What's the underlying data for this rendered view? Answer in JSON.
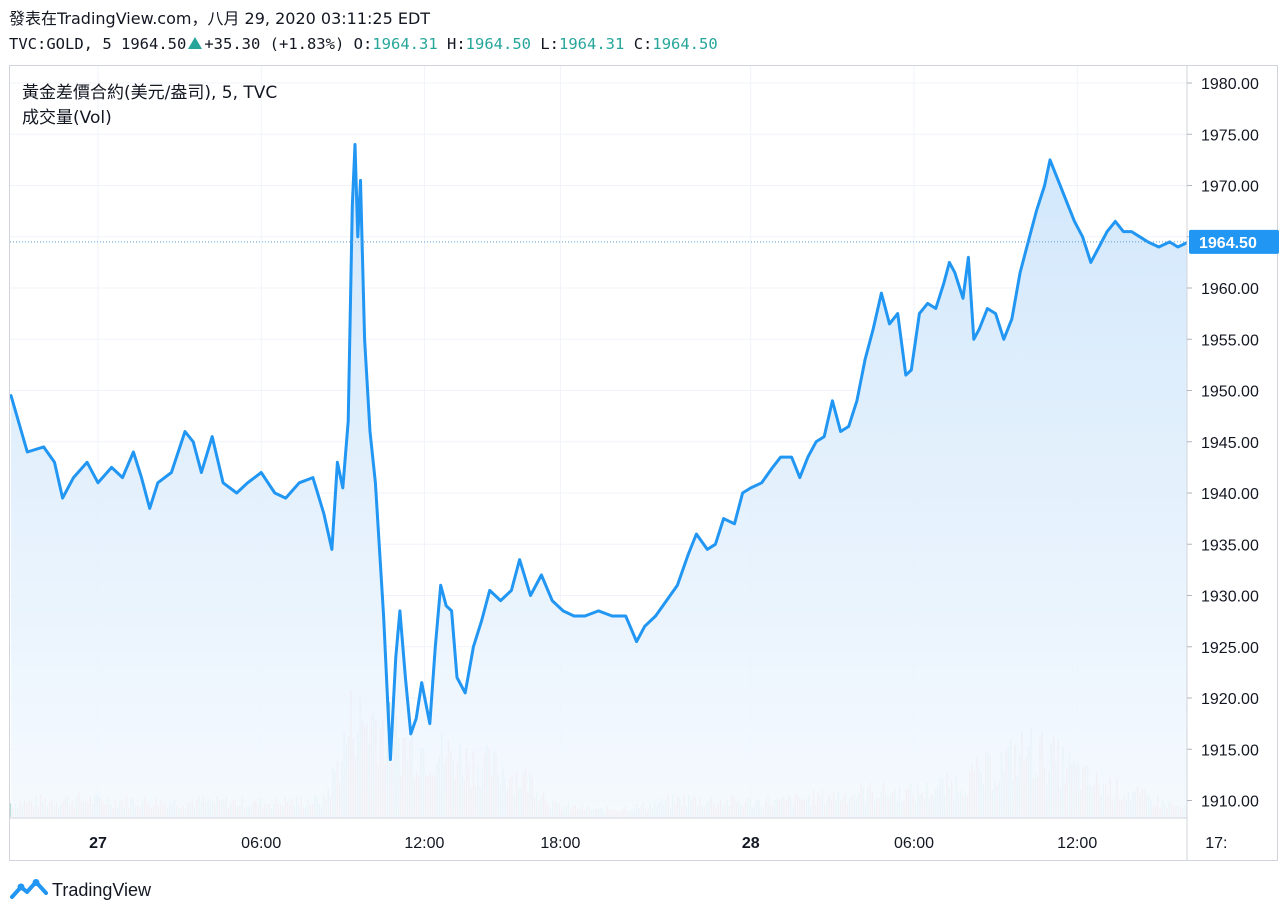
{
  "header": {
    "site_line": "發表在TradingView.com，八月 29, 2020 03:11:25 EDT",
    "symbol": "TVC:GOLD, 5",
    "last": "1964.50",
    "change": "+35.30 (+1.83%)",
    "o_label": "O:",
    "o_value": "1964.31",
    "h_label": "H:",
    "h_value": "1964.50",
    "l_label": "L:",
    "l_value": "1964.31",
    "c_label": "C:",
    "c_value": "1964.50"
  },
  "legend": {
    "series_title": "黃金差價合約(美元/盎司), 5, TVC",
    "volume_title": "成交量(Vol)"
  },
  "price_label": "1964.50",
  "brand": "TradingView",
  "colors": {
    "line": "#2196f3",
    "area_top": "#cfe6fb",
    "area_bottom": "#f4f9fe",
    "up": "#26a69a",
    "volume_up": "#9ed3cb",
    "volume_down": "#f2a6a6",
    "grid": "#f0f3fa",
    "price_dotted": "#5aa0d8"
  },
  "chart_data": {
    "type": "area",
    "ylim": [
      1908,
      1982
    ],
    "y_ticks": [
      1980,
      1975,
      1970,
      1965,
      1960,
      1955,
      1950,
      1945,
      1940,
      1935,
      1930,
      1925,
      1920,
      1915,
      1910
    ],
    "y_tick_labels": [
      "1980.00",
      "1975.00",
      "1970.00",
      "1965.00",
      "1960.00",
      "1955.00",
      "1950.00",
      "1945.00",
      "1940.00",
      "1935.00",
      "1930.00",
      "1925.00",
      "1920.00",
      "1915.00",
      "1910.00"
    ],
    "x_range_hours": [
      -3.2,
      40.1
    ],
    "x_ticks": [
      {
        "t": 0,
        "label": "27",
        "bold": true
      },
      {
        "t": 6,
        "label": "06:00",
        "bold": false
      },
      {
        "t": 12,
        "label": "12:00",
        "bold": false
      },
      {
        "t": 17,
        "label": "18:00",
        "bold": false
      },
      {
        "t": 24,
        "label": "28",
        "bold": true
      },
      {
        "t": 30,
        "label": "06:00",
        "bold": false
      },
      {
        "t": 36,
        "label": "12:00",
        "bold": false
      },
      {
        "t": 41,
        "label": "17:",
        "bold": false
      }
    ],
    "last_value": 1964.5,
    "series": [
      {
        "points": [
          [
            -3.2,
            1949.5
          ],
          [
            -2.6,
            1944.0
          ],
          [
            -2.0,
            1944.5
          ],
          [
            -1.6,
            1943.0
          ],
          [
            -1.3,
            1939.5
          ],
          [
            -0.9,
            1941.5
          ],
          [
            -0.4,
            1943.0
          ],
          [
            0.0,
            1941.0
          ],
          [
            0.5,
            1942.5
          ],
          [
            0.9,
            1941.5
          ],
          [
            1.3,
            1944.0
          ],
          [
            1.6,
            1941.5
          ],
          [
            1.9,
            1938.5
          ],
          [
            2.2,
            1941.0
          ],
          [
            2.7,
            1942.0
          ],
          [
            3.2,
            1946.0
          ],
          [
            3.5,
            1945.0
          ],
          [
            3.8,
            1942.0
          ],
          [
            4.2,
            1945.5
          ],
          [
            4.6,
            1941.0
          ],
          [
            5.1,
            1940.0
          ],
          [
            5.5,
            1941.0
          ],
          [
            6.0,
            1942.0
          ],
          [
            6.5,
            1940.0
          ],
          [
            6.9,
            1939.5
          ],
          [
            7.4,
            1941.0
          ],
          [
            7.9,
            1941.5
          ],
          [
            8.3,
            1938.0
          ],
          [
            8.6,
            1934.5
          ],
          [
            8.8,
            1943.0
          ],
          [
            9.0,
            1940.5
          ],
          [
            9.2,
            1947.0
          ],
          [
            9.35,
            1968.0
          ],
          [
            9.45,
            1974.0
          ],
          [
            9.55,
            1965.0
          ],
          [
            9.65,
            1970.5
          ],
          [
            9.8,
            1955.0
          ],
          [
            10.0,
            1946.0
          ],
          [
            10.2,
            1941.0
          ],
          [
            10.5,
            1928.0
          ],
          [
            10.75,
            1914.0
          ],
          [
            10.95,
            1924.0
          ],
          [
            11.1,
            1928.5
          ],
          [
            11.3,
            1922.0
          ],
          [
            11.5,
            1916.5
          ],
          [
            11.7,
            1918.0
          ],
          [
            11.9,
            1921.5
          ],
          [
            12.2,
            1917.5
          ],
          [
            12.4,
            1925.0
          ],
          [
            12.6,
            1931.0
          ],
          [
            12.8,
            1929.0
          ],
          [
            13.0,
            1928.5
          ],
          [
            13.2,
            1922.0
          ],
          [
            13.5,
            1920.5
          ],
          [
            13.8,
            1925.0
          ],
          [
            14.1,
            1927.5
          ],
          [
            14.4,
            1930.5
          ],
          [
            14.8,
            1929.5
          ],
          [
            15.2,
            1930.5
          ],
          [
            15.5,
            1933.5
          ],
          [
            15.9,
            1930.0
          ],
          [
            16.3,
            1932.0
          ],
          [
            16.7,
            1929.5
          ],
          [
            17.1,
            1928.5
          ],
          [
            17.5,
            1928.0
          ],
          [
            17.9,
            1928.0
          ],
          [
            18.4,
            1928.5
          ],
          [
            18.9,
            1928.0
          ],
          [
            19.4,
            1928.0
          ],
          [
            19.8,
            1925.5
          ],
          [
            20.1,
            1927.0
          ],
          [
            20.5,
            1928.0
          ],
          [
            20.9,
            1929.5
          ],
          [
            21.3,
            1931.0
          ],
          [
            21.7,
            1934.0
          ],
          [
            22.0,
            1936.0
          ],
          [
            22.4,
            1934.5
          ],
          [
            22.7,
            1935.0
          ],
          [
            23.0,
            1937.5
          ],
          [
            23.4,
            1937.0
          ],
          [
            23.7,
            1940.0
          ],
          [
            24.0,
            1940.5
          ],
          [
            24.4,
            1941.0
          ],
          [
            24.8,
            1942.5
          ],
          [
            25.1,
            1943.5
          ],
          [
            25.5,
            1943.5
          ],
          [
            25.8,
            1941.5
          ],
          [
            26.1,
            1943.5
          ],
          [
            26.4,
            1945.0
          ],
          [
            26.7,
            1945.5
          ],
          [
            27.0,
            1949.0
          ],
          [
            27.3,
            1946.0
          ],
          [
            27.6,
            1946.5
          ],
          [
            27.9,
            1949.0
          ],
          [
            28.2,
            1953.0
          ],
          [
            28.5,
            1956.0
          ],
          [
            28.8,
            1959.5
          ],
          [
            29.1,
            1956.5
          ],
          [
            29.4,
            1957.5
          ],
          [
            29.7,
            1951.5
          ],
          [
            29.9,
            1952.0
          ],
          [
            30.2,
            1957.5
          ],
          [
            30.5,
            1958.5
          ],
          [
            30.8,
            1958.0
          ],
          [
            31.1,
            1960.5
          ],
          [
            31.3,
            1962.5
          ],
          [
            31.5,
            1961.5
          ],
          [
            31.8,
            1959.0
          ],
          [
            32.0,
            1963.0
          ],
          [
            32.2,
            1955.0
          ],
          [
            32.4,
            1956.0
          ],
          [
            32.7,
            1958.0
          ],
          [
            33.0,
            1957.5
          ],
          [
            33.3,
            1955.0
          ],
          [
            33.6,
            1957.0
          ],
          [
            33.9,
            1961.5
          ],
          [
            34.2,
            1964.5
          ],
          [
            34.5,
            1967.5
          ],
          [
            34.8,
            1970.0
          ],
          [
            35.0,
            1972.5
          ],
          [
            35.3,
            1970.5
          ],
          [
            35.6,
            1968.5
          ],
          [
            35.9,
            1966.5
          ],
          [
            36.2,
            1965.0
          ],
          [
            36.5,
            1962.5
          ],
          [
            36.8,
            1964.0
          ],
          [
            37.1,
            1965.5
          ],
          [
            37.4,
            1966.5
          ],
          [
            37.7,
            1965.5
          ],
          [
            38.0,
            1965.5
          ],
          [
            38.3,
            1965.0
          ],
          [
            38.6,
            1964.5
          ],
          [
            39.0,
            1964.0
          ],
          [
            39.4,
            1964.5
          ],
          [
            39.7,
            1964.0
          ],
          [
            40.1,
            1964.5
          ]
        ]
      }
    ],
    "volume": {
      "ylim": [
        0,
        100
      ],
      "shape": [
        [
          -3.2,
          12
        ],
        [
          -1,
          15
        ],
        [
          2,
          13
        ],
        [
          4,
          13
        ],
        [
          6,
          12
        ],
        [
          8.3,
          14
        ],
        [
          9.0,
          55
        ],
        [
          9.4,
          90
        ],
        [
          9.7,
          80
        ],
        [
          10.2,
          85
        ],
        [
          10.6,
          72
        ],
        [
          11.2,
          62
        ],
        [
          12.0,
          58
        ],
        [
          13.0,
          52
        ],
        [
          14.0,
          46
        ],
        [
          15.0,
          38
        ],
        [
          16.0,
          30
        ],
        [
          16.8,
          10
        ],
        [
          18.5,
          6
        ],
        [
          20.0,
          9
        ],
        [
          21.5,
          15
        ],
        [
          23.0,
          13
        ],
        [
          25.0,
          13
        ],
        [
          27.0,
          18
        ],
        [
          28.5,
          22
        ],
        [
          30.0,
          20
        ],
        [
          31.5,
          28
        ],
        [
          32.8,
          40
        ],
        [
          34.2,
          57
        ],
        [
          35.2,
          48
        ],
        [
          36.5,
          30
        ],
        [
          38.0,
          20
        ],
        [
          39.5,
          10
        ],
        [
          40.1,
          6
        ]
      ]
    }
  }
}
